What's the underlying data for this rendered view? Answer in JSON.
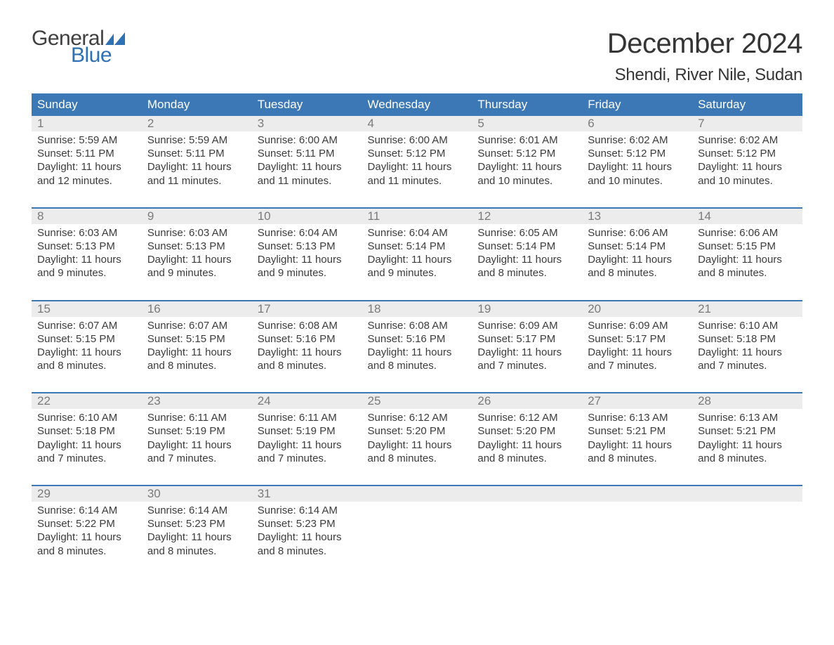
{
  "logo": {
    "line1": "General",
    "line2": "Blue",
    "accent_color": "#2f71b5"
  },
  "title": "December 2024",
  "location": "Shendi, River Nile, Sudan",
  "colors": {
    "header_bg": "#3d78b6",
    "header_text": "#ffffff",
    "daynum_bg": "#ececec",
    "daynum_text": "#7a7a7a",
    "body_text": "#3c3c3c",
    "page_bg": "#ffffff"
  },
  "typography": {
    "title_fontsize": 40,
    "location_fontsize": 24,
    "header_fontsize": 17,
    "daynum_fontsize": 17,
    "cell_fontsize": 15
  },
  "day_headers": [
    "Sunday",
    "Monday",
    "Tuesday",
    "Wednesday",
    "Thursday",
    "Friday",
    "Saturday"
  ],
  "weeks": [
    [
      {
        "n": "1",
        "sr": "Sunrise: 5:59 AM",
        "ss": "Sunset: 5:11 PM",
        "d1": "Daylight: 11 hours",
        "d2": "and 12 minutes."
      },
      {
        "n": "2",
        "sr": "Sunrise: 5:59 AM",
        "ss": "Sunset: 5:11 PM",
        "d1": "Daylight: 11 hours",
        "d2": "and 11 minutes."
      },
      {
        "n": "3",
        "sr": "Sunrise: 6:00 AM",
        "ss": "Sunset: 5:11 PM",
        "d1": "Daylight: 11 hours",
        "d2": "and 11 minutes."
      },
      {
        "n": "4",
        "sr": "Sunrise: 6:00 AM",
        "ss": "Sunset: 5:12 PM",
        "d1": "Daylight: 11 hours",
        "d2": "and 11 minutes."
      },
      {
        "n": "5",
        "sr": "Sunrise: 6:01 AM",
        "ss": "Sunset: 5:12 PM",
        "d1": "Daylight: 11 hours",
        "d2": "and 10 minutes."
      },
      {
        "n": "6",
        "sr": "Sunrise: 6:02 AM",
        "ss": "Sunset: 5:12 PM",
        "d1": "Daylight: 11 hours",
        "d2": "and 10 minutes."
      },
      {
        "n": "7",
        "sr": "Sunrise: 6:02 AM",
        "ss": "Sunset: 5:12 PM",
        "d1": "Daylight: 11 hours",
        "d2": "and 10 minutes."
      }
    ],
    [
      {
        "n": "8",
        "sr": "Sunrise: 6:03 AM",
        "ss": "Sunset: 5:13 PM",
        "d1": "Daylight: 11 hours",
        "d2": "and 9 minutes."
      },
      {
        "n": "9",
        "sr": "Sunrise: 6:03 AM",
        "ss": "Sunset: 5:13 PM",
        "d1": "Daylight: 11 hours",
        "d2": "and 9 minutes."
      },
      {
        "n": "10",
        "sr": "Sunrise: 6:04 AM",
        "ss": "Sunset: 5:13 PM",
        "d1": "Daylight: 11 hours",
        "d2": "and 9 minutes."
      },
      {
        "n": "11",
        "sr": "Sunrise: 6:04 AM",
        "ss": "Sunset: 5:14 PM",
        "d1": "Daylight: 11 hours",
        "d2": "and 9 minutes."
      },
      {
        "n": "12",
        "sr": "Sunrise: 6:05 AM",
        "ss": "Sunset: 5:14 PM",
        "d1": "Daylight: 11 hours",
        "d2": "and 8 minutes."
      },
      {
        "n": "13",
        "sr": "Sunrise: 6:06 AM",
        "ss": "Sunset: 5:14 PM",
        "d1": "Daylight: 11 hours",
        "d2": "and 8 minutes."
      },
      {
        "n": "14",
        "sr": "Sunrise: 6:06 AM",
        "ss": "Sunset: 5:15 PM",
        "d1": "Daylight: 11 hours",
        "d2": "and 8 minutes."
      }
    ],
    [
      {
        "n": "15",
        "sr": "Sunrise: 6:07 AM",
        "ss": "Sunset: 5:15 PM",
        "d1": "Daylight: 11 hours",
        "d2": "and 8 minutes."
      },
      {
        "n": "16",
        "sr": "Sunrise: 6:07 AM",
        "ss": "Sunset: 5:15 PM",
        "d1": "Daylight: 11 hours",
        "d2": "and 8 minutes."
      },
      {
        "n": "17",
        "sr": "Sunrise: 6:08 AM",
        "ss": "Sunset: 5:16 PM",
        "d1": "Daylight: 11 hours",
        "d2": "and 8 minutes."
      },
      {
        "n": "18",
        "sr": "Sunrise: 6:08 AM",
        "ss": "Sunset: 5:16 PM",
        "d1": "Daylight: 11 hours",
        "d2": "and 8 minutes."
      },
      {
        "n": "19",
        "sr": "Sunrise: 6:09 AM",
        "ss": "Sunset: 5:17 PM",
        "d1": "Daylight: 11 hours",
        "d2": "and 7 minutes."
      },
      {
        "n": "20",
        "sr": "Sunrise: 6:09 AM",
        "ss": "Sunset: 5:17 PM",
        "d1": "Daylight: 11 hours",
        "d2": "and 7 minutes."
      },
      {
        "n": "21",
        "sr": "Sunrise: 6:10 AM",
        "ss": "Sunset: 5:18 PM",
        "d1": "Daylight: 11 hours",
        "d2": "and 7 minutes."
      }
    ],
    [
      {
        "n": "22",
        "sr": "Sunrise: 6:10 AM",
        "ss": "Sunset: 5:18 PM",
        "d1": "Daylight: 11 hours",
        "d2": "and 7 minutes."
      },
      {
        "n": "23",
        "sr": "Sunrise: 6:11 AM",
        "ss": "Sunset: 5:19 PM",
        "d1": "Daylight: 11 hours",
        "d2": "and 7 minutes."
      },
      {
        "n": "24",
        "sr": "Sunrise: 6:11 AM",
        "ss": "Sunset: 5:19 PM",
        "d1": "Daylight: 11 hours",
        "d2": "and 7 minutes."
      },
      {
        "n": "25",
        "sr": "Sunrise: 6:12 AM",
        "ss": "Sunset: 5:20 PM",
        "d1": "Daylight: 11 hours",
        "d2": "and 8 minutes."
      },
      {
        "n": "26",
        "sr": "Sunrise: 6:12 AM",
        "ss": "Sunset: 5:20 PM",
        "d1": "Daylight: 11 hours",
        "d2": "and 8 minutes."
      },
      {
        "n": "27",
        "sr": "Sunrise: 6:13 AM",
        "ss": "Sunset: 5:21 PM",
        "d1": "Daylight: 11 hours",
        "d2": "and 8 minutes."
      },
      {
        "n": "28",
        "sr": "Sunrise: 6:13 AM",
        "ss": "Sunset: 5:21 PM",
        "d1": "Daylight: 11 hours",
        "d2": "and 8 minutes."
      }
    ],
    [
      {
        "n": "29",
        "sr": "Sunrise: 6:14 AM",
        "ss": "Sunset: 5:22 PM",
        "d1": "Daylight: 11 hours",
        "d2": "and 8 minutes."
      },
      {
        "n": "30",
        "sr": "Sunrise: 6:14 AM",
        "ss": "Sunset: 5:23 PM",
        "d1": "Daylight: 11 hours",
        "d2": "and 8 minutes."
      },
      {
        "n": "31",
        "sr": "Sunrise: 6:14 AM",
        "ss": "Sunset: 5:23 PM",
        "d1": "Daylight: 11 hours",
        "d2": "and 8 minutes."
      },
      null,
      null,
      null,
      null
    ]
  ]
}
